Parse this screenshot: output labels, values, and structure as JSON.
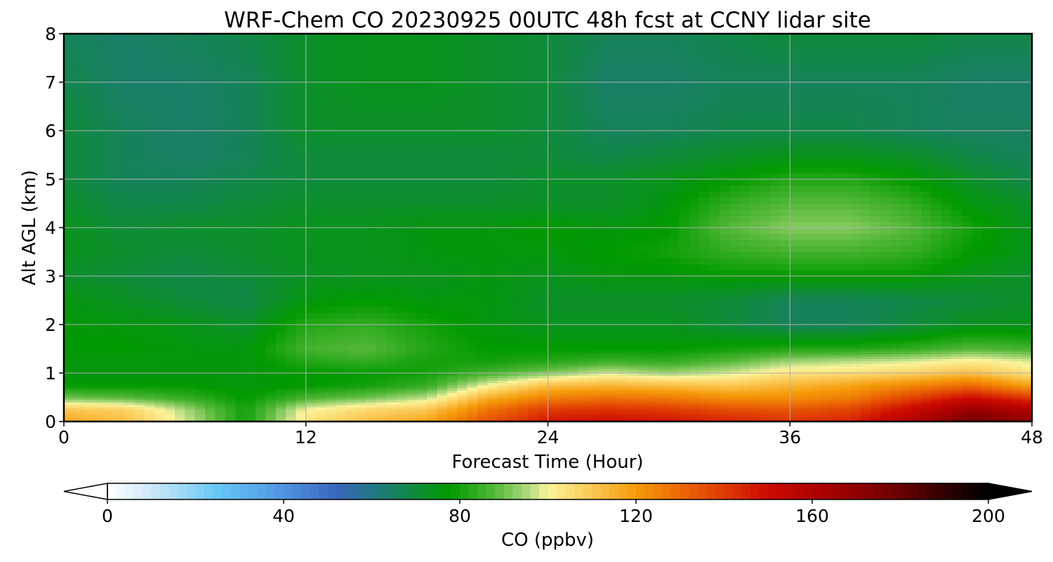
{
  "chart_data": {
    "type": "heatmap",
    "title": "WRF-Chem CO  20230925 00UTC 48h fcst at CCNY lidar site",
    "xlabel": "Forecast Time (Hour)",
    "ylabel": "Alt AGL (km)",
    "xlim": [
      0,
      48
    ],
    "ylim": [
      0,
      8
    ],
    "x_ticks": [
      0,
      12,
      24,
      36,
      48
    ],
    "y_ticks": [
      0,
      1,
      2,
      3,
      4,
      5,
      6,
      7,
      8
    ],
    "grid": true,
    "colorbar": {
      "label": "CO  (ppbv)",
      "range": [
        0,
        200
      ],
      "ticks": [
        0,
        40,
        80,
        120,
        160,
        200
      ],
      "extend": "both",
      "orientation": "horizontal",
      "stops": [
        {
          "v": 0,
          "c": "#ffffff"
        },
        {
          "v": 10,
          "c": "#cde8f8"
        },
        {
          "v": 25,
          "c": "#66c7f5"
        },
        {
          "v": 40,
          "c": "#4f95e0"
        },
        {
          "v": 52,
          "c": "#3a66bd"
        },
        {
          "v": 62,
          "c": "#1e7a78"
        },
        {
          "v": 72,
          "c": "#0b8f2a"
        },
        {
          "v": 78,
          "c": "#029a00"
        },
        {
          "v": 88,
          "c": "#55b83a"
        },
        {
          "v": 96,
          "c": "#b5dc82"
        },
        {
          "v": 100,
          "c": "#fbf49a"
        },
        {
          "v": 110,
          "c": "#fbc753"
        },
        {
          "v": 120,
          "c": "#f59a09"
        },
        {
          "v": 130,
          "c": "#ec6a05"
        },
        {
          "v": 140,
          "c": "#df3a03"
        },
        {
          "v": 150,
          "c": "#cc0a00"
        },
        {
          "v": 165,
          "c": "#a30000"
        },
        {
          "v": 180,
          "c": "#6a0000"
        },
        {
          "v": 190,
          "c": "#300000"
        },
        {
          "v": 200,
          "c": "#000000"
        }
      ]
    },
    "x": [
      0,
      3,
      6,
      9,
      12,
      15,
      18,
      21,
      24,
      27,
      30,
      33,
      36,
      39,
      42,
      45,
      48
    ],
    "y": [
      0,
      0.25,
      0.5,
      0.75,
      1,
      1.25,
      1.5,
      2,
      2.5,
      3,
      3.5,
      4,
      4.5,
      5,
      5.5,
      6,
      7,
      8
    ],
    "z": [
      [
        118,
        112,
        98,
        80,
        104,
        112,
        118,
        135,
        148,
        150,
        148,
        145,
        142,
        145,
        160,
        178,
        170
      ],
      [
        110,
        108,
        95,
        80,
        100,
        106,
        110,
        128,
        140,
        142,
        140,
        136,
        134,
        138,
        152,
        168,
        160
      ],
      [
        90,
        88,
        84,
        78,
        86,
        90,
        96,
        115,
        125,
        128,
        126,
        122,
        122,
        126,
        138,
        150,
        140
      ],
      [
        78,
        78,
        78,
        76,
        78,
        80,
        84,
        100,
        112,
        114,
        112,
        110,
        114,
        118,
        124,
        130,
        118
      ],
      [
        76,
        76,
        76,
        76,
        78,
        78,
        80,
        86,
        92,
        98,
        94,
        98,
        104,
        105,
        108,
        112,
        104
      ],
      [
        76,
        76,
        76,
        76,
        82,
        84,
        80,
        80,
        82,
        85,
        84,
        88,
        94,
        96,
        98,
        102,
        98
      ],
      [
        77,
        78,
        76,
        76,
        86,
        88,
        82,
        78,
        78,
        78,
        78,
        80,
        82,
        82,
        84,
        88,
        86
      ],
      [
        77,
        76,
        75,
        72,
        82,
        84,
        80,
        76,
        74,
        74,
        74,
        70,
        66,
        66,
        70,
        74,
        74
      ],
      [
        76,
        73,
        70,
        68,
        76,
        78,
        76,
        76,
        72,
        72,
        72,
        70,
        66,
        66,
        68,
        70,
        72
      ],
      [
        72,
        70,
        68,
        70,
        73,
        74,
        74,
        76,
        74,
        76,
        76,
        78,
        78,
        78,
        78,
        74,
        72
      ],
      [
        74,
        72,
        70,
        72,
        74,
        74,
        76,
        76,
        76,
        78,
        80,
        84,
        86,
        86,
        84,
        78,
        74
      ],
      [
        74,
        70,
        72,
        72,
        74,
        74,
        76,
        76,
        78,
        76,
        78,
        88,
        92,
        92,
        88,
        80,
        74
      ],
      [
        72,
        68,
        68,
        70,
        72,
        72,
        72,
        72,
        72,
        72,
        76,
        84,
        88,
        88,
        84,
        76,
        72
      ],
      [
        70,
        66,
        66,
        68,
        70,
        70,
        70,
        70,
        72,
        72,
        74,
        78,
        82,
        82,
        78,
        72,
        68
      ],
      [
        70,
        66,
        64,
        66,
        70,
        70,
        70,
        70,
        70,
        68,
        70,
        72,
        74,
        74,
        72,
        68,
        66
      ],
      [
        70,
        66,
        64,
        66,
        72,
        72,
        72,
        72,
        70,
        66,
        66,
        68,
        68,
        68,
        66,
        65,
        65
      ],
      [
        68,
        64,
        64,
        66,
        72,
        74,
        74,
        72,
        70,
        64,
        64,
        66,
        66,
        66,
        66,
        64,
        64
      ],
      [
        66,
        64,
        66,
        68,
        72,
        74,
        74,
        72,
        70,
        66,
        66,
        68,
        70,
        70,
        70,
        68,
        68
      ]
    ]
  }
}
